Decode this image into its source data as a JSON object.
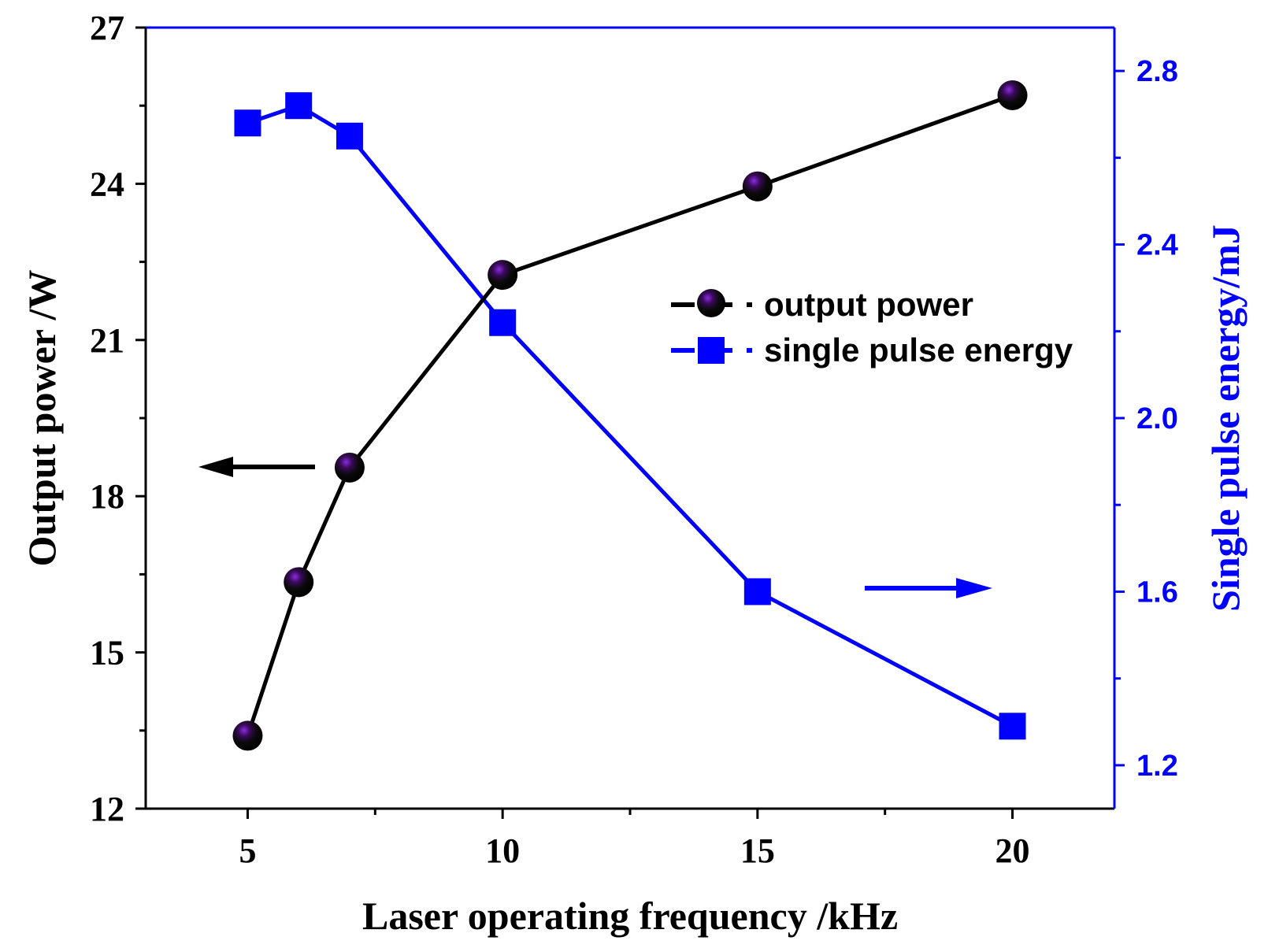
{
  "chart_data": {
    "type": "line",
    "x": [
      5,
      6,
      7,
      10,
      15,
      20
    ],
    "xlabel": "Laser operating frequency /kHz",
    "xlim": [
      3,
      22
    ],
    "xticks": [
      5,
      10,
      15,
      20
    ],
    "xtick_labels": [
      "5",
      "10",
      "15",
      "20"
    ],
    "xticks_minor": [
      7.5,
      12.5,
      17.5
    ],
    "left_axis": {
      "label": "Output power /W",
      "range": [
        12,
        27
      ],
      "ticks": [
        12,
        15,
        18,
        21,
        24,
        27
      ],
      "tick_labels": [
        "12",
        "15",
        "18",
        "21",
        "24",
        "27"
      ],
      "minor_ticks": [
        13.5,
        16.5,
        19.5,
        22.5,
        25.5
      ],
      "color": "#000000"
    },
    "right_axis": {
      "label": "Single pulse energy/mJ",
      "range": [
        1.1,
        2.9
      ],
      "ticks": [
        1.2,
        1.6,
        2.0,
        2.4,
        2.8
      ],
      "tick_labels": [
        "1.2",
        "1.6",
        "2.0",
        "2.4",
        "2.8"
      ],
      "minor_ticks": [
        1.4,
        1.8,
        2.2,
        2.6
      ],
      "color": "#0000ff"
    },
    "series": [
      {
        "name": "output power",
        "axis": "left",
        "color": "#000000",
        "marker": "sphere",
        "values": [
          13.4,
          16.35,
          18.55,
          22.25,
          23.95,
          25.7
        ]
      },
      {
        "name": "single pulse energy",
        "axis": "right",
        "color": "#0000ff",
        "marker": "square",
        "values": [
          2.68,
          2.72,
          2.65,
          2.22,
          1.6,
          1.29
        ]
      }
    ],
    "legend": {
      "position": "center-right",
      "entries": [
        "output power",
        "single pulse energy"
      ]
    },
    "annotations": [
      {
        "type": "arrow",
        "direction": "left",
        "color": "#000000",
        "meaning": "output power read on left axis"
      },
      {
        "type": "arrow",
        "direction": "right",
        "color": "#0000ff",
        "meaning": "single pulse energy read on right axis"
      }
    ]
  }
}
